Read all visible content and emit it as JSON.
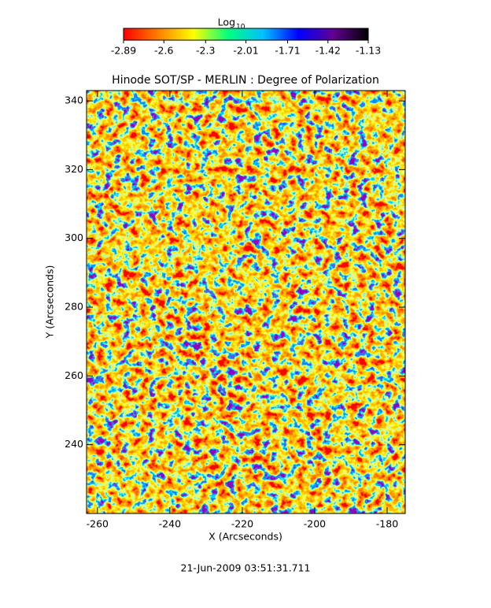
{
  "chart_data": {
    "type": "heatmap",
    "title": "Hinode SOT/SP - MERLIN : Degree of Polarization",
    "xlabel": "X (Arcseconds)",
    "ylabel": "Y (Arcseconds)",
    "xlim": [
      -263,
      -175
    ],
    "xticks": [
      -260,
      -240,
      -220,
      -200,
      -180
    ],
    "ylim": [
      220,
      343
    ],
    "yticks": [
      240,
      260,
      280,
      300,
      320,
      340
    ],
    "colorbar": {
      "label": "Log",
      "label_subscript": "10",
      "lim": [
        -2.89,
        -1.13
      ],
      "ticks": [
        -2.89,
        -2.6,
        -2.3,
        -2.01,
        -1.71,
        -1.42,
        -1.13
      ],
      "colors": [
        "#ff0000",
        "#ff8000",
        "#ffff00",
        "#00ff80",
        "#00c0ff",
        "#0000ff",
        "#600090",
        "#000000"
      ]
    },
    "footer": "21-Jun-2009 03:51:31.711"
  }
}
